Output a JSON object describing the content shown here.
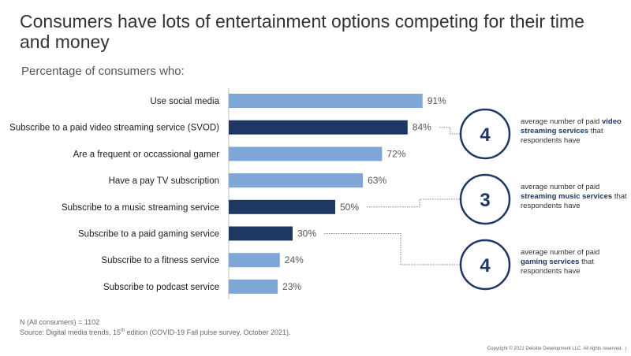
{
  "slide": {
    "title": "Consumers have lots of entertainment options competing for their time and money",
    "subtitle": "Percentage of consumers who:",
    "footnote_n": "N (All consumers) = 1102",
    "source_prefix": "Source: Digital media trends, 15",
    "source_sup": "th",
    "source_suffix": " edition (COVID-19 Fall pulse survey, October 2021).",
    "copyright": "Copyright © 2021 Deloitte Development LLC. All rights reserved.",
    "page_marker": "|"
  },
  "chart_data": {
    "type": "bar",
    "orientation": "horizontal",
    "categories": [
      "Use social media",
      "Subscribe to a paid video streaming service (SVOD)",
      "Are a frequent or occassional gamer",
      "Have a pay TV subscription",
      "Subscribe to a music streaming service",
      "Subscribe to a paid gaming service",
      "Subscribe to a fitness service",
      "Subscribe to podcast service"
    ],
    "values": [
      91,
      84,
      72,
      63,
      50,
      30,
      24,
      23
    ],
    "value_labels": [
      "91%",
      "84%",
      "72%",
      "63%",
      "50%",
      "30%",
      "24%",
      "23%"
    ],
    "highlighted": [
      false,
      true,
      false,
      false,
      true,
      true,
      false,
      false
    ],
    "xlim": [
      0,
      100
    ],
    "grid": false,
    "colors": {
      "default": "#7ea6d6",
      "highlight": "#1f3863",
      "axis": "#bfbfbf",
      "callout": "#1f3863"
    },
    "callouts": [
      {
        "category_index": 1,
        "number": "4",
        "text": [
          {
            "t": "average number of paid ",
            "b": false
          },
          {
            "t": "video",
            "b": true
          },
          {
            "t": "|",
            "b": false
          },
          {
            "t": "streaming services",
            "b": true
          },
          {
            "t": " that",
            "b": false
          },
          {
            "t": "|",
            "b": false
          },
          {
            "t": "respondents have",
            "b": false
          }
        ]
      },
      {
        "category_index": 4,
        "number": "3",
        "text": [
          {
            "t": "average number of paid",
            "b": false
          },
          {
            "t": "|",
            "b": false
          },
          {
            "t": "streaming music services",
            "b": true
          },
          {
            "t": " that",
            "b": false
          },
          {
            "t": "|",
            "b": false
          },
          {
            "t": "respondents have",
            "b": false
          }
        ]
      },
      {
        "category_index": 5,
        "number": "4",
        "text": [
          {
            "t": "average number of paid",
            "b": false
          },
          {
            "t": "|",
            "b": false
          },
          {
            "t": "gaming services",
            "b": true
          },
          {
            "t": " that",
            "b": false
          },
          {
            "t": "|",
            "b": false
          },
          {
            "t": "respondents have",
            "b": false
          }
        ]
      }
    ]
  }
}
